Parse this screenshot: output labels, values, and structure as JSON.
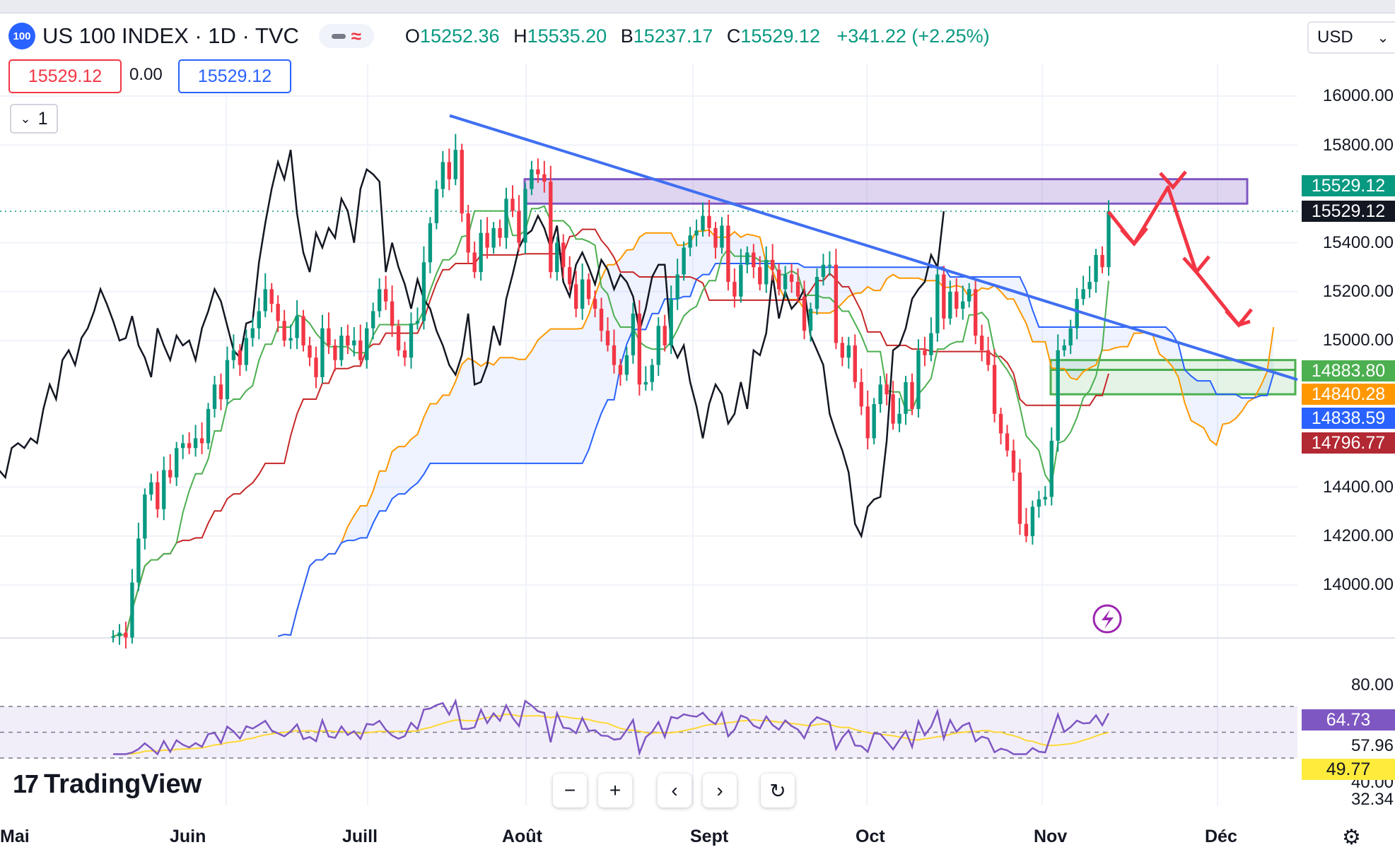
{
  "header": {
    "logo_text": "100",
    "symbol_title": "US 100 INDEX · 1D · TVC",
    "ohlc": {
      "o_label": "O",
      "o_value": "15252.36",
      "h_label": "H",
      "h_value": "15535.20",
      "b_label": "B",
      "b_value": "15237.17",
      "c_label": "C",
      "c_value": "15529.12",
      "change": "+341.22 (+2.25%)"
    }
  },
  "trade": {
    "bid": "15529.12",
    "spread": "0.00",
    "ask": "15529.12",
    "quantity": "1"
  },
  "currency": {
    "selected": "USD"
  },
  "price_axis": [
    "16000.00",
    "15800.00",
    "15400.00",
    "15200.00",
    "15000.00",
    "14400.00",
    "14200.00",
    "14000.00"
  ],
  "price_tags": {
    "a": {
      "text": "15529.12",
      "color": "#089981"
    },
    "b": {
      "text": "15529.12",
      "color": "#131722"
    },
    "c": {
      "text": "14883.80",
      "color": "#4caf50"
    },
    "d": {
      "text": "14840.28",
      "color": "#ff9800"
    },
    "e": {
      "text": "14838.59",
      "color": "#2962ff"
    },
    "f": {
      "text": "14796.77",
      "color": "#b22833"
    }
  },
  "rsi_axis": [
    "80.00",
    "57.96",
    "40.00",
    "32.34"
  ],
  "rsi_tags": {
    "rsi": {
      "text": "64.73",
      "color": "#7e57c2"
    },
    "ma": {
      "text": "49.77",
      "color": "#ffeb3b"
    }
  },
  "months": [
    "Mai",
    "Juin",
    "Juill",
    "Août",
    "Sept",
    "Oct",
    "Nov",
    "Déc"
  ],
  "branding": {
    "logo_text": "TradingView"
  },
  "navigation": {
    "zoom_out": "−",
    "zoom_in": "+",
    "scroll_left": "‹",
    "scroll_right": "›",
    "reset": "↻"
  },
  "colors": {
    "up": "#089981",
    "down": "#f23645",
    "trendline": "#3f6ff2",
    "resistance": "#7e57c2",
    "tenkan": "#4caf50",
    "kijun": "#c62828",
    "span_a": "#ff9800",
    "span_b": "#2962ff",
    "arrows": "#f23645"
  },
  "chart_data": {
    "type": "candlestick",
    "title": "US 100 INDEX · 1D · TVC",
    "y_axis_range": [
      13800,
      16100
    ],
    "ohlc_last": {
      "open": 15252.36,
      "high": 15535.2,
      "low": 15237.17,
      "close": 15529.12
    },
    "x_labels": [
      "Mai",
      "Juin",
      "Juill",
      "Août",
      "Sept",
      "Oct",
      "Nov",
      "Déc"
    ],
    "closes": [
      13790,
      13805,
      13785,
      14010,
      14190,
      14370,
      14420,
      14310,
      14470,
      14440,
      14560,
      14580,
      14560,
      14600,
      14580,
      14720,
      14820,
      14760,
      14920,
      14960,
      14900,
      15010,
      15050,
      15120,
      15210,
      15150,
      15080,
      15000,
      15010,
      15100,
      14980,
      14930,
      14850,
      15050,
      14980,
      14920,
      15020,
      14980,
      15000,
      14920,
      15050,
      15120,
      15210,
      15160,
      15060,
      14960,
      14930,
      15070,
      15080,
      15320,
      15480,
      15620,
      15730,
      15660,
      15780,
      15520,
      15360,
      15280,
      15440,
      15380,
      15460,
      15420,
      15580,
      15530,
      15400,
      15620,
      15700,
      15680,
      15650,
      15280,
      15400,
      15300,
      15230,
      15130,
      15250,
      15170,
      15130,
      15040,
      14980,
      14900,
      14860,
      14940,
      15110,
      14820,
      14830,
      14900,
      15060,
      14980,
      15170,
      15270,
      15380,
      15430,
      15450,
      15510,
      15460,
      15380,
      15470,
      15240,
      15180,
      15310,
      15360,
      15300,
      15230,
      15330,
      15290,
      15210,
      15270,
      15240,
      15180,
      15040,
      15130,
      15260,
      15310,
      15310,
      14990,
      14930,
      14980,
      14830,
      14730,
      14600,
      14740,
      14820,
      14780,
      14660,
      14700,
      14830,
      14720,
      14960,
      14940,
      15030,
      15270,
      15090,
      15200,
      15130,
      15160,
      15210,
      15020,
      14960,
      14900,
      14700,
      14620,
      14550,
      14460,
      14250,
      14200,
      14320,
      14350,
      14360,
      14590,
      14960,
      14980,
      15050,
      15170,
      15210,
      15240,
      15350,
      15300,
      15529
    ],
    "resistance_zone": [
      15560,
      15660
    ],
    "support_zones": [
      [
        14880,
        14920
      ],
      [
        14780,
        14880
      ]
    ],
    "rsi": {
      "overbought": 70,
      "oversold": 30,
      "last": 64.73,
      "ma_last": 49.77,
      "axis": [
        80.0,
        57.96,
        40.0,
        32.34
      ]
    }
  }
}
